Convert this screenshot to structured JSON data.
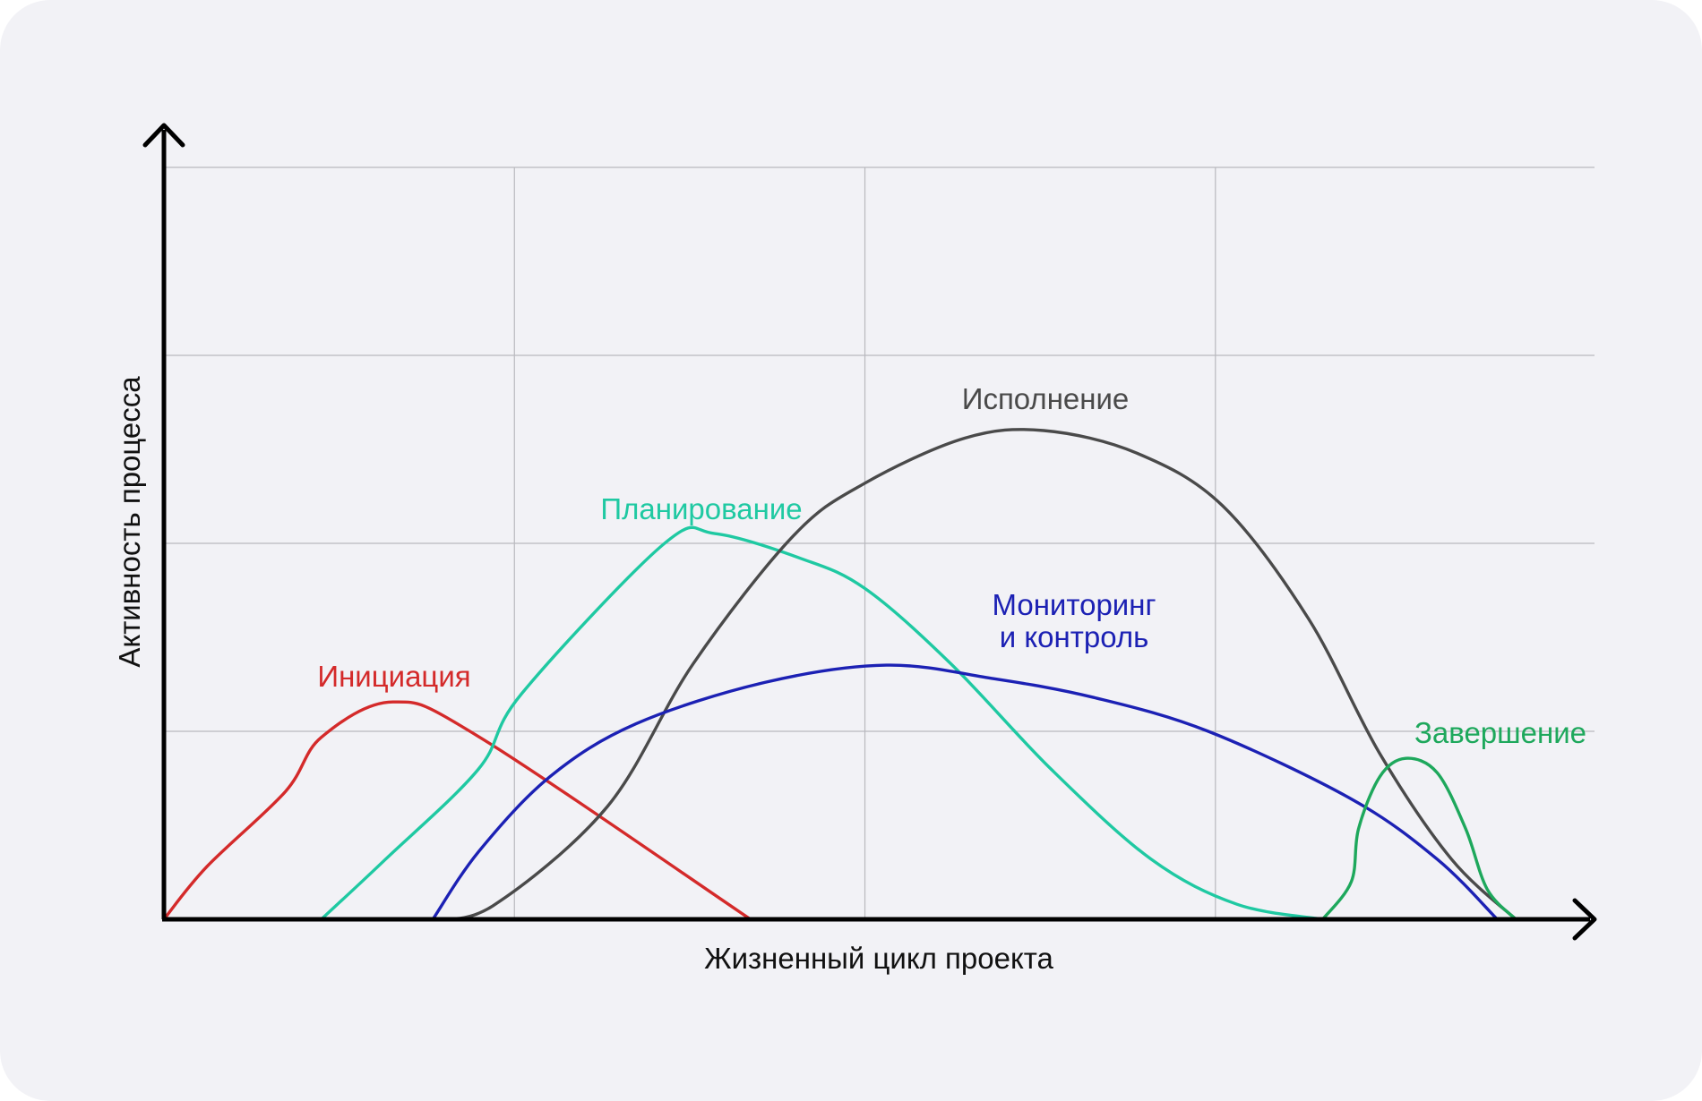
{
  "chart_data": {
    "type": "line",
    "xlabel": "Жизненный цикл проекта",
    "ylabel": "Активность процесса",
    "xlim": [
      0,
      100
    ],
    "ylim": [
      0,
      100
    ],
    "grid": true,
    "x_gridlines": [
      0,
      24.5,
      49,
      73.5
    ],
    "y_gridlines": [
      25,
      50,
      75,
      100
    ],
    "series": [
      {
        "name": "Инициация",
        "color": "#d42a2a",
        "label_lines": [
          "Инициация"
        ],
        "points": [
          [
            0,
            0
          ],
          [
            3,
            7
          ],
          [
            8.5,
            17
          ],
          [
            11,
            24.2
          ],
          [
            16,
            28.9
          ],
          [
            22,
            24.3
          ],
          [
            41,
            0
          ]
        ]
      },
      {
        "name": "Планирование",
        "color": "#1fc9a2",
        "label_lines": [
          "Планирование"
        ],
        "points": [
          [
            11,
            0
          ],
          [
            15.5,
            8
          ],
          [
            22,
            20
          ],
          [
            25,
            30
          ],
          [
            35,
            50
          ],
          [
            38.5,
            51.3
          ],
          [
            44.5,
            48
          ],
          [
            49,
            44
          ],
          [
            55,
            34
          ],
          [
            62,
            20
          ],
          [
            69,
            8
          ],
          [
            75,
            2
          ],
          [
            81,
            0
          ]
        ]
      },
      {
        "name": "Исполнение",
        "color": "#4a4a4a",
        "label_lines": [
          "Исполнение"
        ],
        "points": [
          [
            18.8,
            0
          ],
          [
            23,
            1.8
          ],
          [
            31,
            15
          ],
          [
            37,
            34
          ],
          [
            44,
            51
          ],
          [
            49,
            58
          ],
          [
            56,
            64
          ],
          [
            61.5,
            65
          ],
          [
            68,
            62
          ],
          [
            74,
            55
          ],
          [
            80,
            40
          ],
          [
            85,
            22
          ],
          [
            90,
            8
          ],
          [
            94.5,
            0
          ]
        ]
      },
      {
        "name": "Мониторинг и контроль",
        "color": "#1c21b4",
        "label_lines": [
          "Мониторинг",
          "и контроль"
        ],
        "points": [
          [
            18.8,
            0
          ],
          [
            22,
            9
          ],
          [
            27,
            19
          ],
          [
            33,
            26
          ],
          [
            42,
            31.5
          ],
          [
            50.5,
            33.8
          ],
          [
            58,
            32
          ],
          [
            65,
            29.5
          ],
          [
            73,
            25
          ],
          [
            83,
            16
          ],
          [
            89,
            8
          ],
          [
            93.2,
            0
          ]
        ]
      },
      {
        "name": "Завершение",
        "color": "#1ea85c",
        "label_lines": [
          "Завершение"
        ],
        "points": [
          [
            81,
            0
          ],
          [
            83,
            5
          ],
          [
            83.5,
            12
          ],
          [
            85,
            19
          ],
          [
            86.8,
            21.4
          ],
          [
            89,
            19.5
          ],
          [
            91,
            12
          ],
          [
            92.5,
            4
          ],
          [
            94.5,
            0
          ]
        ]
      }
    ]
  }
}
